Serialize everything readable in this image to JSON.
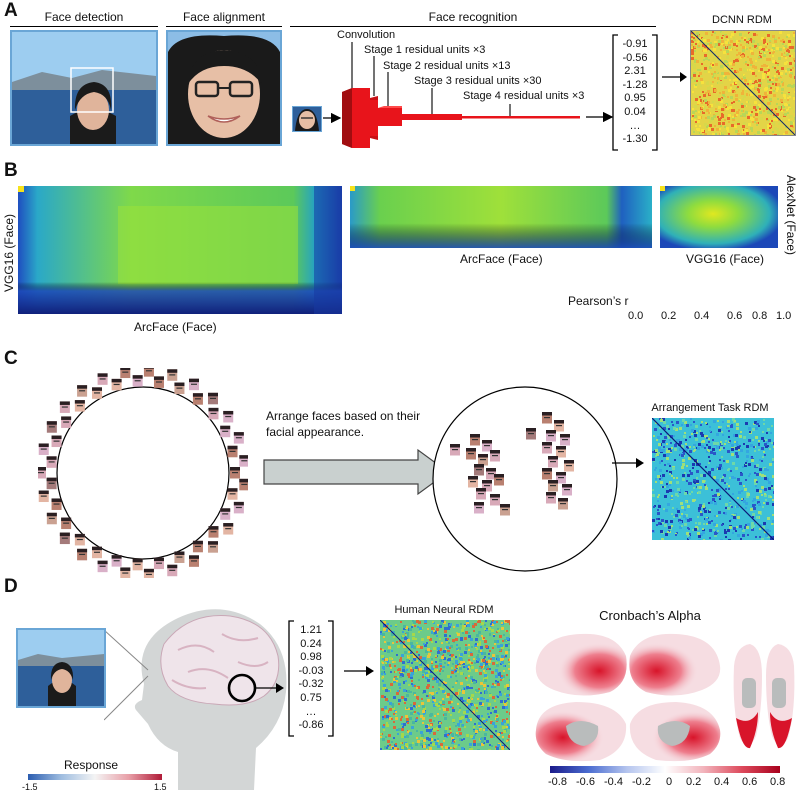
{
  "panel_a": {
    "letter": "A",
    "headers": [
      "Face detection",
      "Face alignment",
      "Face recognition",
      "DCNN RDM"
    ],
    "network_labels": [
      "Convolution",
      "Stage 1 residual units ×3",
      "Stage 2 residual units ×13",
      "Stage 3 residual units ×30",
      "Stage 4 residual units ×3"
    ],
    "feature_vector": [
      "-0.91",
      "-0.56",
      "2.31",
      "-1.28",
      "0.95",
      "0.04",
      "…",
      "-1.30"
    ]
  },
  "panel_b": {
    "letter": "B",
    "large_ylabel": "VGG16 (Face)",
    "large_xlabel": "ArcFace (Face)",
    "mid_xlabel": "ArcFace (Face)",
    "small_xlabel": "VGG16 (Face)",
    "right_ylabel": "AlexNet (Face)",
    "colorbar_title": "Pearson’s r",
    "colorbar_ticks": [
      "0.0",
      "0.2",
      "0.4",
      "0.6",
      "0.8",
      "1.0"
    ]
  },
  "panel_c": {
    "letter": "C",
    "instruction": "Arrange faces based on their facial appearance.",
    "rdm_title": "Arrangement Task RDM"
  },
  "panel_d": {
    "letter": "D",
    "neural_vector": [
      "1.21",
      "0.24",
      "0.98",
      "-0.03",
      "-0.32",
      "0.75",
      "…",
      "-0.86"
    ],
    "neural_rdm_title": "Human Neural RDM",
    "alpha_title": "Cronbach’s Alpha",
    "alpha_ticks": [
      "-0.8",
      "-0.6",
      "-0.4",
      "-0.2",
      "0",
      "0.2",
      "0.4",
      "0.6",
      "0.8"
    ],
    "response_title": "Response",
    "response_ticks": [
      "-1.5",
      "1.5"
    ]
  },
  "colors": {
    "network": "#e8141b",
    "photo_border": "#6aa6d6",
    "arrow_fill": "#c9d0cf"
  }
}
